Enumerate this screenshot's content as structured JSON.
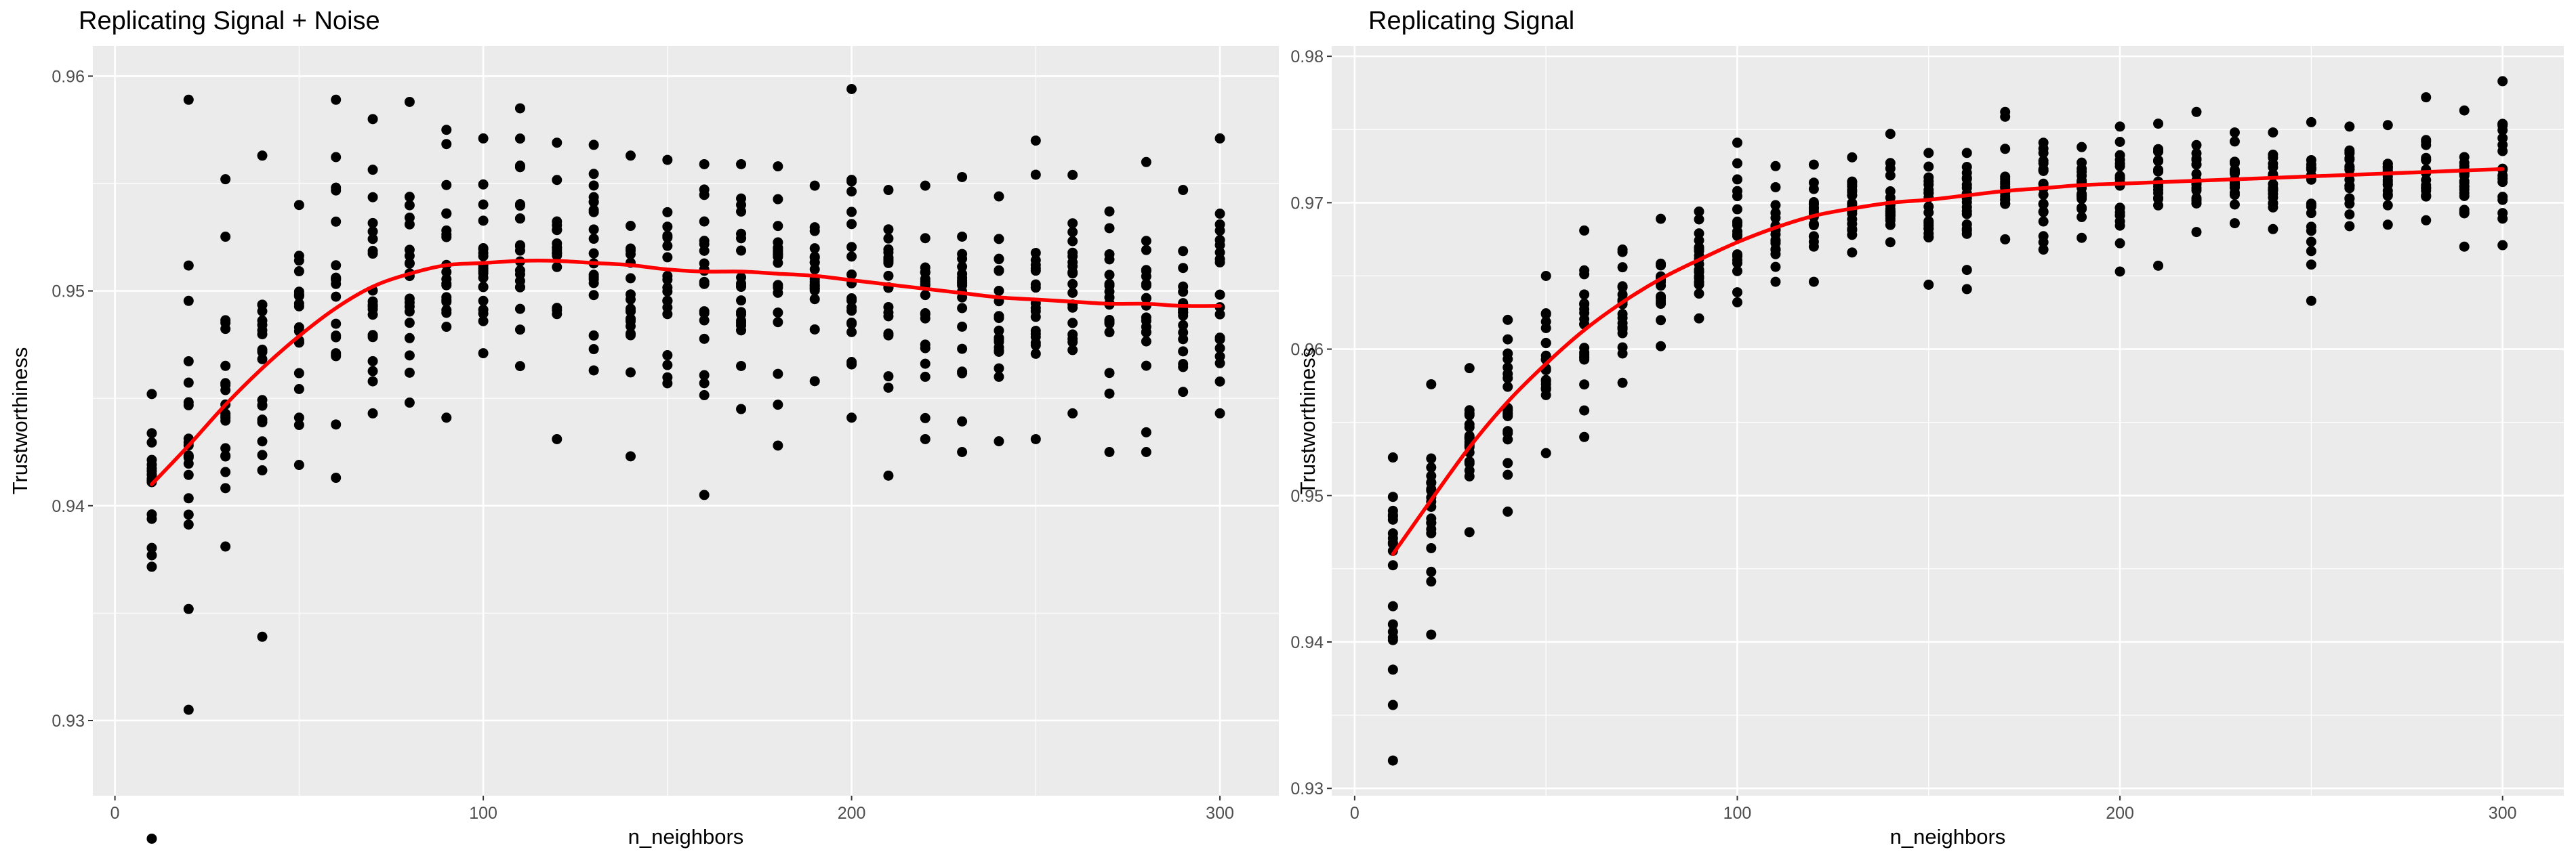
{
  "chart_data": [
    {
      "type": "scatter",
      "title": "Replicating Signal + Noise",
      "xlabel": "n_neighbors",
      "ylabel": "Trustworthiness",
      "xlim": [
        -6,
        316
      ],
      "ylim": [
        0.9265,
        0.9614
      ],
      "x_ticks": [
        0,
        100,
        200,
        300
      ],
      "x_tick_labels": [
        "0",
        "100",
        "200",
        "300"
      ],
      "y_ticks": [
        0.93,
        0.94,
        0.95,
        0.96
      ],
      "y_tick_labels": [
        "0.93",
        "0.94",
        "0.95",
        "0.96"
      ],
      "grid": true,
      "point_color": "#000000",
      "point_spread_down": [
        0.0165,
        0.0123,
        0.0066,
        0.0125,
        0.006,
        0.0079,
        0.0059,
        0.006,
        0.0071,
        0.0042,
        0.0049,
        0.0083,
        0.005,
        0.0089,
        0.0053,
        0.0104,
        0.0064,
        0.008,
        0.0049,
        0.0064,
        0.0089,
        0.007,
        0.0074,
        0.0067,
        0.0065,
        0.0052,
        0.0069,
        0.0069,
        0.004,
        0.005
      ],
      "point_spread_up": [
        0.0042,
        0.0161,
        0.0105,
        0.0099,
        0.0061,
        0.0097,
        0.0078,
        0.008,
        0.0063,
        0.0058,
        0.0071,
        0.0055,
        0.0055,
        0.0051,
        0.0051,
        0.005,
        0.005,
        0.005,
        0.0042,
        0.0089,
        0.0044,
        0.0048,
        0.0054,
        0.0047,
        0.0074,
        0.0059,
        0.0043,
        0.0066,
        0.0054,
        0.0078
      ],
      "series": [
        {
          "name": "",
          "kind": "smooth",
          "color": "#ff0000",
          "x": [
            10,
            20,
            30,
            40,
            50,
            60,
            70,
            80,
            90,
            100,
            110,
            120,
            130,
            140,
            150,
            160,
            170,
            180,
            190,
            200,
            210,
            220,
            230,
            240,
            250,
            260,
            270,
            280,
            290,
            300
          ],
          "y": [
            0.941,
            0.9428,
            0.9447,
            0.9464,
            0.9479,
            0.9492,
            0.9502,
            0.9508,
            0.9512,
            0.9513,
            0.9514,
            0.9514,
            0.9513,
            0.9512,
            0.951,
            0.9509,
            0.9509,
            0.9508,
            0.9507,
            0.9505,
            0.9503,
            0.9501,
            0.9499,
            0.9497,
            0.9496,
            0.9495,
            0.9494,
            0.9494,
            0.9493,
            0.9493
          ]
        }
      ]
    },
    {
      "type": "scatter",
      "title": "Replicating Signal",
      "xlabel": "n_neighbors",
      "ylabel": "Trustworthiness",
      "xlim": [
        -6,
        316
      ],
      "ylim": [
        0.9295,
        0.9807
      ],
      "x_ticks": [
        0,
        100,
        200,
        300
      ],
      "x_tick_labels": [
        "0",
        "100",
        "200",
        "300"
      ],
      "y_ticks": [
        0.93,
        0.94,
        0.95,
        0.96,
        0.97,
        0.98
      ],
      "y_tick_labels": [
        "0.93",
        "0.94",
        "0.95",
        "0.96",
        "0.97",
        "0.98"
      ],
      "grid": true,
      "point_color": "#000000",
      "point_spread_down": [
        0.0141,
        0.0092,
        0.0058,
        0.0075,
        0.0061,
        0.0073,
        0.0055,
        0.0046,
        0.004,
        0.0041,
        0.0037,
        0.0045,
        0.003,
        0.0027,
        0.0058,
        0.0064,
        0.0033,
        0.0042,
        0.0036,
        0.006,
        0.0057,
        0.0035,
        0.003,
        0.0035,
        0.0085,
        0.0035,
        0.0035,
        0.0033,
        0.0052,
        0.0052
      ],
      "point_spread_up": [
        0.0066,
        0.0079,
        0.0054,
        0.0056,
        0.006,
        0.0068,
        0.0036,
        0.0041,
        0.0033,
        0.0068,
        0.0042,
        0.0035,
        0.0035,
        0.0047,
        0.0032,
        0.0029,
        0.0054,
        0.0031,
        0.0026,
        0.0039,
        0.004,
        0.0047,
        0.0032,
        0.0031,
        0.0037,
        0.0033,
        0.0033,
        0.0051,
        0.0041,
        0.006
      ],
      "series": [
        {
          "name": "",
          "kind": "smooth",
          "color": "#ff0000",
          "x": [
            10,
            20,
            30,
            40,
            50,
            60,
            70,
            80,
            90,
            100,
            110,
            120,
            130,
            140,
            150,
            160,
            170,
            180,
            190,
            200,
            210,
            220,
            230,
            240,
            250,
            260,
            270,
            280,
            290,
            300
          ],
          "y": [
            0.946,
            0.9497,
            0.9533,
            0.9564,
            0.959,
            0.9613,
            0.9632,
            0.9648,
            0.9661,
            0.9673,
            0.9683,
            0.9691,
            0.9696,
            0.97,
            0.9702,
            0.9705,
            0.9708,
            0.971,
            0.9712,
            0.9713,
            0.9714,
            0.9715,
            0.9716,
            0.9717,
            0.9718,
            0.9719,
            0.972,
            0.9721,
            0.9722,
            0.9723
          ]
        }
      ]
    }
  ]
}
